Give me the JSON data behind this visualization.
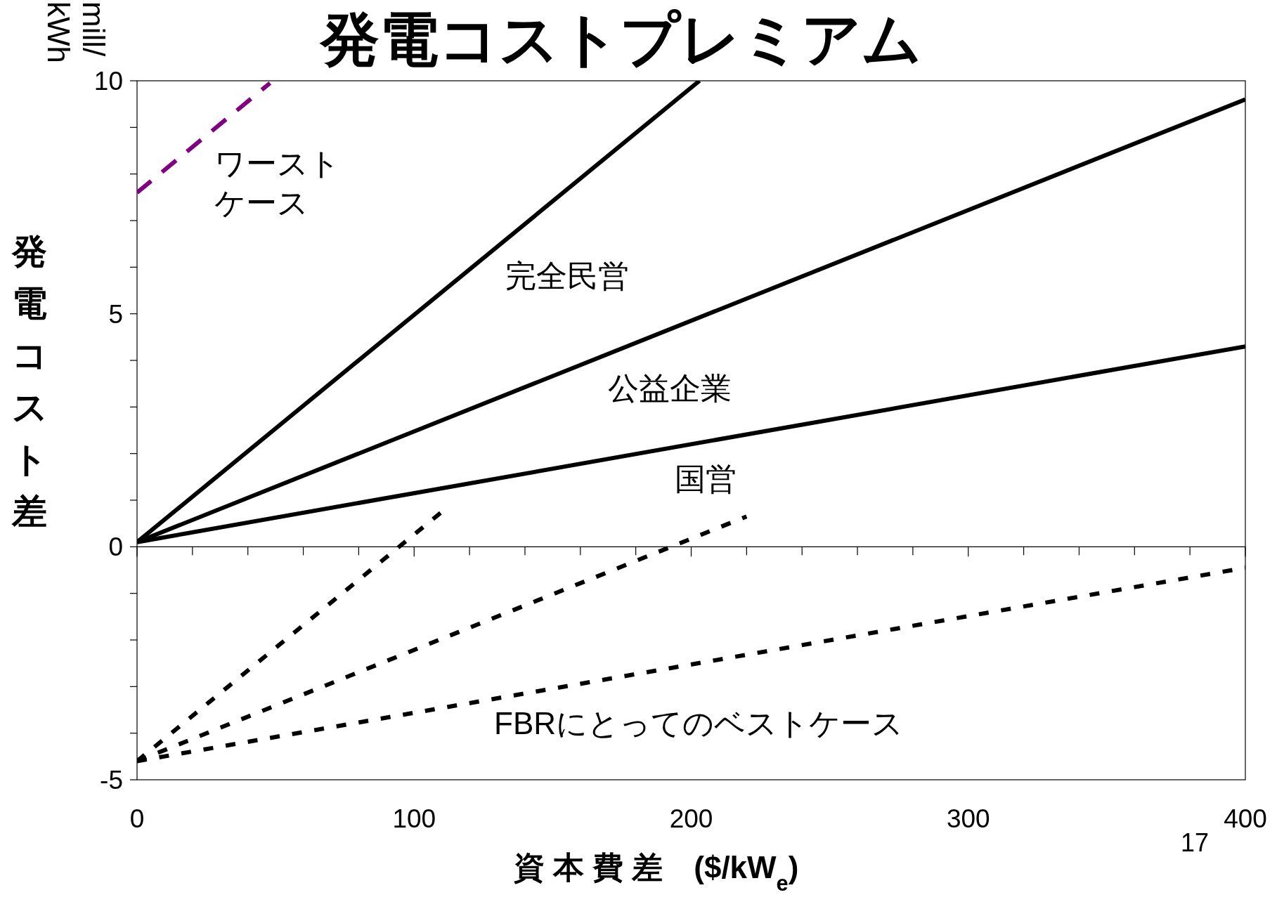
{
  "chart_data": {
    "type": "line",
    "title": "発電コストプレミアム",
    "xlabel": "資 本 費 差　($/kW$_{e}$)",
    "ylabel": "発電コスト差",
    "xlim": [
      0,
      400
    ],
    "xticks": [
      0,
      100,
      200,
      300,
      400
    ],
    "ylim": [
      -5,
      10
    ],
    "yticks": [
      -5,
      0,
      5,
      10
    ],
    "series": [
      {
        "color": "#000000",
        "line_style": "solid",
        "x": [
          0,
          203
        ],
        "values": [
          0.1,
          10
        ]
      },
      {
        "color": "#000000",
        "line_style": "solid",
        "x": [
          0,
          400
        ],
        "values": [
          0.1,
          9.6
        ]
      },
      {
        "color": "#000000",
        "line_style": "solid",
        "x": [
          0,
          400
        ],
        "values": [
          0.1,
          4.3
        ]
      },
      {
        "color": "#000000",
        "line_style": "dotted",
        "x": [
          0,
          110
        ],
        "values": [
          -4.6,
          0.75
        ]
      },
      {
        "color": "#000000",
        "line_style": "dotted",
        "x": [
          0,
          220
        ],
        "values": [
          -4.6,
          0.65
        ]
      },
      {
        "color": "#000000",
        "line_style": "dotted",
        "x": [
          0,
          400
        ],
        "values": [
          -4.6,
          -0.45
        ]
      },
      {
        "color": "#800080",
        "line_style": "dashed",
        "x": [
          0,
          48
        ],
        "values": [
          7.6,
          9.95
        ]
      }
    ],
    "annotations": [
      "ワースト",
      "ケース",
      "完全民営",
      "公益企業",
      "国営",
      "FBRにとってのベストケース",
      "mill/kWh",
      "17"
    ]
  }
}
